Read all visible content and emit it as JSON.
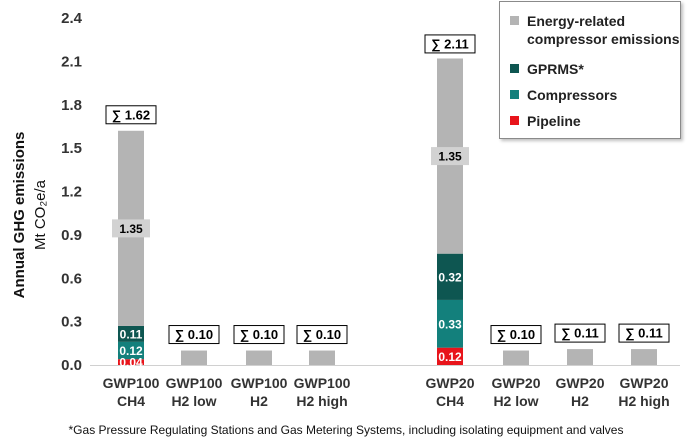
{
  "chart_data": {
    "type": "stacked-bar",
    "ylabel_line1": "Annual GHG emissions",
    "ylabel_line2": "Mt CO₂e/a",
    "ylim": [
      0,
      2.4
    ],
    "yticks": [
      "0.0",
      "0.3",
      "0.6",
      "0.9",
      "1.2",
      "1.5",
      "1.8",
      "2.1",
      "2.4"
    ],
    "ytick_values": [
      0,
      0.3,
      0.6,
      0.9,
      1.2,
      1.5,
      1.8,
      2.1,
      2.4
    ],
    "categories": [
      {
        "line1": "GWP100",
        "line2": "CH4"
      },
      {
        "line1": "GWP100",
        "line2": "H2 low"
      },
      {
        "line1": "GWP100",
        "line2": "H2"
      },
      {
        "line1": "GWP100",
        "line2": "H2 high"
      },
      {
        "line1": "GWP20",
        "line2": "CH4"
      },
      {
        "line1": "GWP20",
        "line2": "H2 low"
      },
      {
        "line1": "GWP20",
        "line2": "H2"
      },
      {
        "line1": "GWP20",
        "line2": "H2 high"
      }
    ],
    "series": [
      {
        "name": "Pipeline",
        "color": "#e8141b",
        "values": [
          0.04,
          0.0,
          0.0,
          0.0,
          0.12,
          0.0,
          0.0,
          0.0
        ],
        "labels": [
          "0.04",
          "",
          "",
          "",
          "0.12",
          "",
          "",
          ""
        ]
      },
      {
        "name": "Compressors",
        "color": "#13807c",
        "values": [
          0.12,
          0.0,
          0.0,
          0.0,
          0.33,
          0.0,
          0.0,
          0.0
        ],
        "labels": [
          "0.12",
          "",
          "",
          "",
          "0.33",
          "",
          "",
          ""
        ]
      },
      {
        "name": "GPRMS*",
        "color": "#0e5651",
        "values": [
          0.11,
          0.0,
          0.0,
          0.0,
          0.32,
          0.0,
          0.0,
          0.0
        ],
        "labels": [
          "0.11",
          "",
          "",
          "",
          "0.32",
          "",
          "",
          ""
        ]
      },
      {
        "name": "Energy-related compressor emissions",
        "color": "#b4b4b4",
        "values": [
          1.35,
          0.1,
          0.1,
          0.1,
          1.35,
          0.1,
          0.11,
          0.11
        ],
        "labels": [
          "1.35",
          "",
          "",
          "",
          "1.35",
          "",
          "",
          ""
        ]
      }
    ],
    "totals": [
      "∑ 1.62",
      "∑ 0.10",
      "∑ 0.10",
      "∑ 0.10",
      "∑ 2.11",
      "∑ 0.10",
      "∑ 0.11",
      "∑ 0.11"
    ],
    "total_values": [
      1.62,
      0.1,
      0.1,
      0.1,
      2.11,
      0.1,
      0.11,
      0.11
    ],
    "legend": [
      {
        "label": "Energy-related\ncompressor emissions",
        "color": "#b4b4b4"
      },
      {
        "label": "GPRMS*",
        "color": "#0e5651"
      },
      {
        "label": "Compressors",
        "color": "#13807c"
      },
      {
        "label": "Pipeline",
        "color": "#e8141b"
      }
    ],
    "footnote": "*Gas Pressure Regulating Stations and Gas Metering Systems, including isolating equipment and valves"
  }
}
